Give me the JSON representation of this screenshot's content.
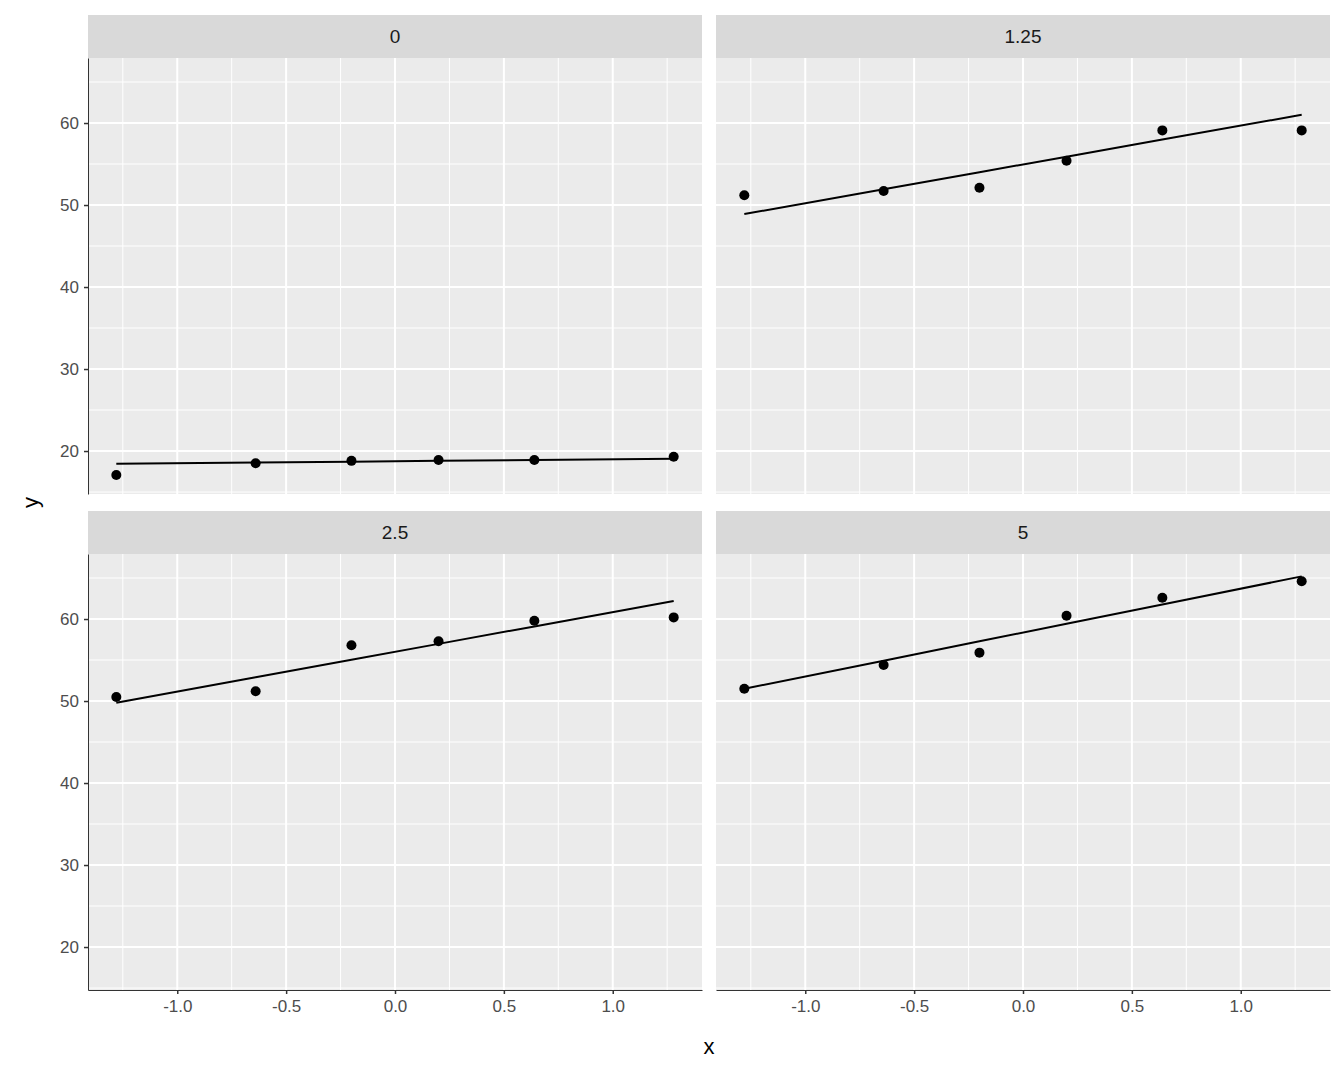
{
  "chart_data": {
    "type": "scatter",
    "x_label": "x",
    "y_label": "y",
    "xlim": [
      -1.41,
      1.41
    ],
    "xticks": [
      {
        "value": -1,
        "label": "-1.0"
      },
      -0.5,
      {
        "value": 0,
        "label": "0.0"
      },
      0.5,
      {
        "value": 1,
        "label": "1.0"
      }
    ],
    "ylim": [
      14.76,
      67.93
    ],
    "yticks": [
      20,
      30,
      40,
      50,
      60
    ],
    "grid": true,
    "x": [
      -1.28,
      -0.64,
      -0.2,
      0.2,
      0.64,
      1.28
    ],
    "facets": [
      {
        "title": "0",
        "series": [
          {
            "type": "scatter",
            "values": [
              17.07,
              18.5,
              18.8,
              18.9,
              18.9,
              19.3
            ]
          },
          {
            "type": "line",
            "values": [
              18.45,
              18.6,
              18.7,
              18.8,
              18.9,
              19.05
            ]
          }
        ]
      },
      {
        "title": "1.25",
        "series": [
          {
            "type": "scatter",
            "values": [
              51.2,
              51.7,
              52.1,
              55.4,
              59.1,
              59.1
            ]
          },
          {
            "type": "line",
            "values": [
              48.9,
              51.93,
              54.01,
              55.9,
              57.98,
              61.0
            ]
          }
        ]
      },
      {
        "title": "2.5",
        "series": [
          {
            "type": "scatter",
            "values": [
              50.5,
              51.2,
              56.8,
              57.3,
              59.8,
              60.2
            ]
          },
          {
            "type": "line",
            "values": [
              49.8,
              52.9,
              55.03,
              56.97,
              59.1,
              62.2
            ]
          }
        ]
      },
      {
        "title": "5",
        "series": [
          {
            "type": "scatter",
            "values": [
              51.5,
              54.4,
              55.9,
              60.4,
              62.6,
              64.6
            ]
          },
          {
            "type": "line",
            "values": [
              51.5,
              54.92,
              57.28,
              59.42,
              61.77,
              65.2
            ]
          }
        ]
      }
    ]
  }
}
